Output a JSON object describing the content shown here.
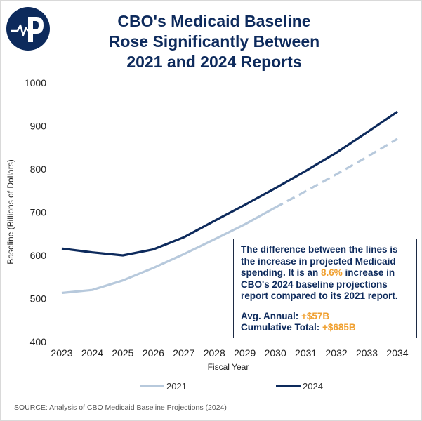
{
  "title_lines": [
    "CBO's Medicaid Baseline",
    "Rose Significantly Between",
    "2021 and 2024 Reports"
  ],
  "logo": {
    "icon": "pulse-p-logo",
    "bg": "#0d2a5c"
  },
  "callout": {
    "line1": "The difference between the lines is",
    "line2": "the increase in projected Medicaid",
    "line3_pre": "spending. It is an ",
    "line3_hl": "8.6%",
    "line3_post": " increase in",
    "line4": "CBO's 2024 baseline projections",
    "line5": "report compared to its 2021 report.",
    "avg_label": "Avg. Annual: ",
    "avg_value": "+$57B",
    "cum_label": "Cumulative Total:  ",
    "cum_value": "+$685B"
  },
  "source": "SOURCE: Analysis of CBO Medicaid Baseline Projections (2024)",
  "colors": {
    "series_2021": "#b7c9dc",
    "series_2024": "#0d2a5c",
    "highlight": "#f0a030",
    "title": "#0d2a5c"
  },
  "chart_data": {
    "type": "line",
    "title": "CBO's Medicaid Baseline Rose Significantly Between 2021 and 2024 Reports",
    "xlabel": "Fiscal Year",
    "ylabel": "Baseline (Billions of Dollars)",
    "ylim": [
      400,
      1000
    ],
    "yticks": [
      400,
      500,
      600,
      700,
      800,
      900,
      1000
    ],
    "categories": [
      "2023",
      "2024",
      "2025",
      "2026",
      "2027",
      "2028",
      "2029",
      "2030",
      "2031",
      "2032",
      "2033",
      "2034"
    ],
    "grid": false,
    "legend_position": "bottom",
    "series": [
      {
        "name": "2021",
        "values": [
          513,
          520,
          542,
          571,
          603,
          637,
          672,
          711,
          749,
          788,
          828,
          870
        ],
        "dashed_from_index": 7
      },
      {
        "name": "2024",
        "values": [
          616,
          607,
          600,
          614,
          642,
          680,
          717,
          756,
          796,
          838,
          885,
          933
        ]
      }
    ]
  }
}
